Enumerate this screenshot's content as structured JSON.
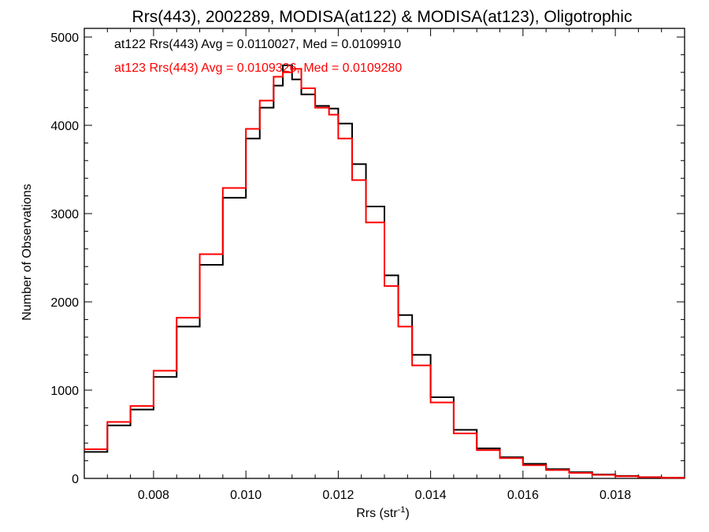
{
  "chart_data": {
    "type": "line",
    "title": "Rrs(443), 2002289, MODISA(at122) & MODISA(at123), Oligotrophic",
    "xlabel_main": "Rrs (str",
    "xlabel_sup": "-1",
    "xlabel_close": ")",
    "ylabel": "Number of Observations",
    "xlim": [
      0.0065,
      0.0195
    ],
    "ylim": [
      0,
      5000
    ],
    "x_ticks": [
      0.008,
      0.01,
      0.012,
      0.014,
      0.016,
      0.018
    ],
    "x_tick_labels": [
      "0.008",
      "0.010",
      "0.012",
      "0.014",
      "0.016",
      "0.018"
    ],
    "y_ticks": [
      0,
      1000,
      2000,
      3000,
      4000,
      5000
    ],
    "y_tick_labels": [
      "0",
      "1000",
      "2000",
      "3000",
      "4000",
      "5000"
    ],
    "annotations": [
      {
        "text": "at122 Rrs(443) Avg = 0.0110027, Med = 0.0109910",
        "color": "#000000"
      },
      {
        "text": "at123 Rrs(443) Avg = 0.0109326, Med = 0.0109280",
        "color": "#ff0000"
      }
    ],
    "series": [
      {
        "name": "at122",
        "color": "#000000",
        "x": [
          0.0065,
          0.007,
          0.0075,
          0.008,
          0.0085,
          0.009,
          0.0095,
          0.01,
          0.0103,
          0.0106,
          0.0108,
          0.011,
          0.0112,
          0.0115,
          0.0118,
          0.012,
          0.0123,
          0.0126,
          0.013,
          0.0133,
          0.0136,
          0.014,
          0.0145,
          0.015,
          0.0155,
          0.016,
          0.0165,
          0.017,
          0.0175,
          0.018,
          0.0185,
          0.019,
          0.0195
        ],
        "y": [
          300,
          600,
          780,
          1150,
          1720,
          2420,
          3180,
          3850,
          4200,
          4450,
          4680,
          4520,
          4350,
          4220,
          4190,
          4020,
          3560,
          3080,
          2300,
          1850,
          1400,
          920,
          550,
          340,
          240,
          165,
          105,
          70,
          45,
          28,
          15,
          8,
          0
        ]
      },
      {
        "name": "at123",
        "color": "#ff0000",
        "x": [
          0.0065,
          0.007,
          0.0075,
          0.008,
          0.0085,
          0.009,
          0.0095,
          0.01,
          0.0103,
          0.0106,
          0.0108,
          0.011,
          0.0112,
          0.0115,
          0.0118,
          0.012,
          0.0123,
          0.0126,
          0.013,
          0.0133,
          0.0136,
          0.014,
          0.0145,
          0.015,
          0.0155,
          0.016,
          0.0165,
          0.017,
          0.0175,
          0.018,
          0.0185,
          0.019,
          0.0195
        ],
        "y": [
          330,
          640,
          820,
          1220,
          1820,
          2540,
          3290,
          3960,
          4280,
          4550,
          4600,
          4640,
          4420,
          4200,
          4120,
          3850,
          3380,
          2900,
          2180,
          1720,
          1280,
          860,
          510,
          320,
          230,
          150,
          95,
          62,
          40,
          25,
          13,
          7,
          0
        ]
      }
    ]
  }
}
